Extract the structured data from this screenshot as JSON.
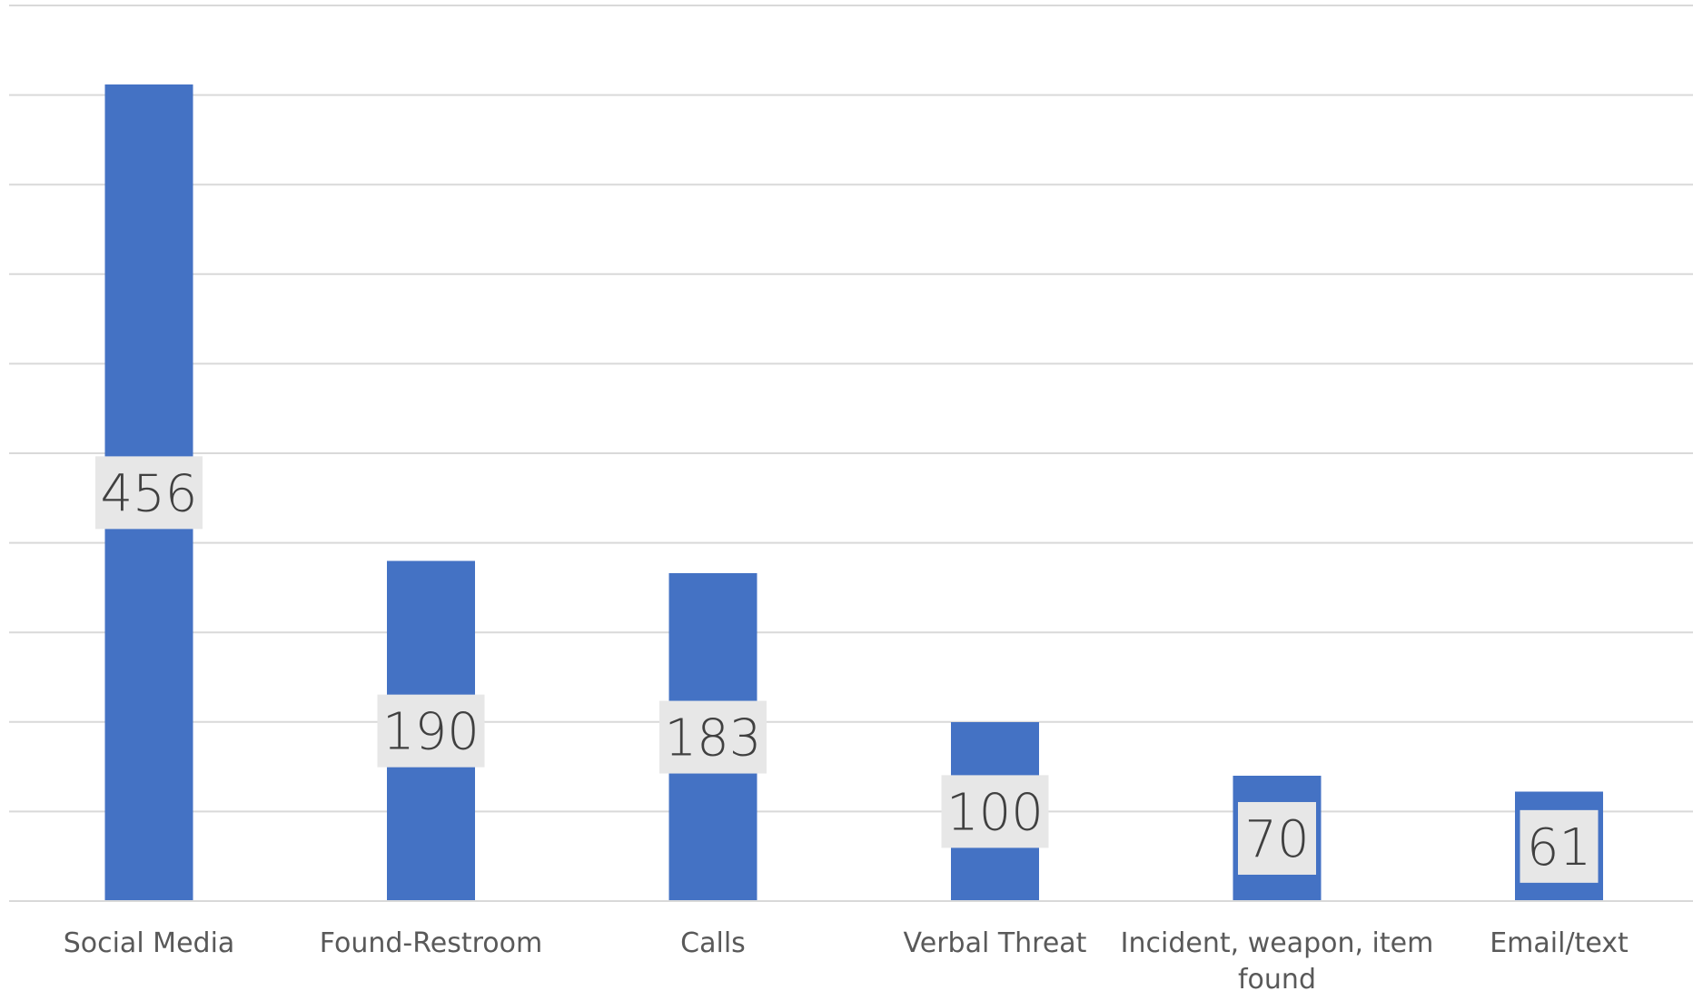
{
  "chart_data": {
    "type": "bar",
    "title": "",
    "xlabel": "",
    "ylabel": "",
    "categories": [
      [
        "Social Media"
      ],
      [
        "Found-Restroom"
      ],
      [
        "Calls"
      ],
      [
        "Verbal Threat"
      ],
      [
        "Incident, weapon, item",
        "found"
      ],
      [
        "Email/text"
      ]
    ],
    "series": [
      {
        "values": [
          456,
          190,
          183,
          100,
          70,
          61
        ],
        "color": "#4472C4"
      }
    ],
    "ylim": [
      0,
      500
    ],
    "ytick_step": 50,
    "grid": true,
    "legend": "none",
    "data_labels": true,
    "data_label_position": "center"
  }
}
